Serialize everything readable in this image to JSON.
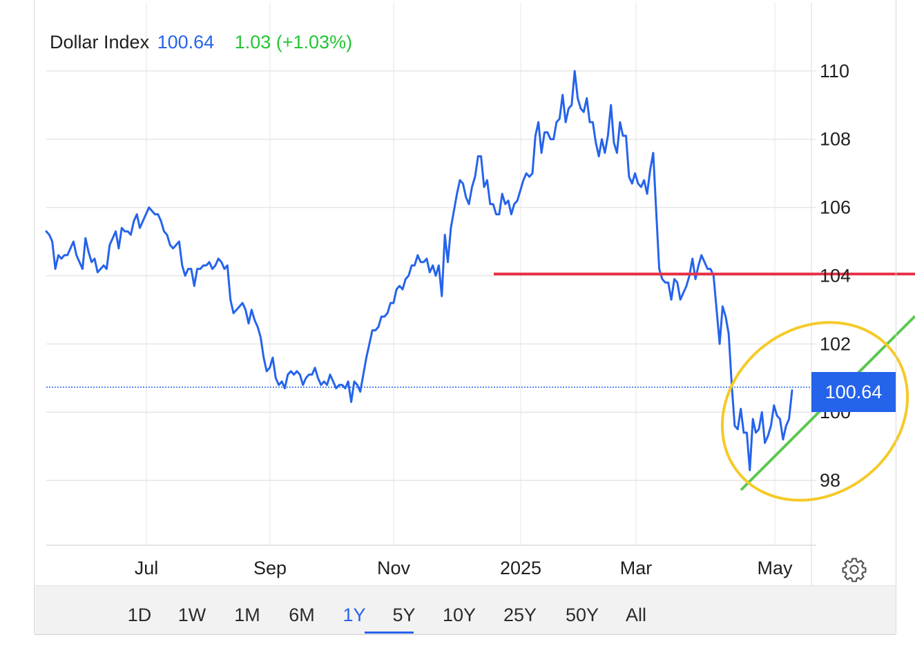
{
  "legend": {
    "name": "Dollar Index",
    "last": "100.64",
    "change": "1.03 (+1.03%)"
  },
  "price_tag": "100.64",
  "range_tabs": [
    "1D",
    "1W",
    "1M",
    "6M",
    "1Y",
    "5Y",
    "10Y",
    "25Y",
    "50Y",
    "All"
  ],
  "active_range": "1Y",
  "colors": {
    "line": "#2563eb",
    "accent": "#2563eb",
    "change_up": "#22c534",
    "support_line": "#e8344a",
    "trend_line": "#5cc84f",
    "highlight_ellipse": "#f5ca28"
  },
  "icons": {
    "settings": "gear-icon"
  },
  "chart_data": {
    "type": "line",
    "title": "",
    "xlabel": "",
    "ylabel": "",
    "x_tick_labels": [
      "Jul",
      "Sep",
      "Nov",
      "2025",
      "Mar",
      "May"
    ],
    "y_ticks": [
      98,
      100,
      102,
      104,
      106,
      108,
      110
    ],
    "ylim": [
      96.1,
      112.0
    ],
    "grid": true,
    "last_value": 100.64,
    "series": [
      {
        "name": "Dollar Index",
        "values": [
          105.3,
          105.2,
          105.0,
          104.2,
          104.6,
          104.5,
          104.6,
          104.6,
          104.8,
          105.0,
          104.6,
          104.4,
          104.2,
          105.1,
          104.7,
          104.4,
          104.5,
          104.1,
          104.2,
          104.3,
          104.2,
          104.9,
          105.1,
          105.3,
          104.8,
          105.4,
          105.3,
          105.3,
          105.2,
          105.6,
          105.8,
          105.4,
          105.6,
          105.8,
          106.0,
          105.9,
          105.8,
          105.8,
          105.6,
          105.3,
          105.2,
          104.9,
          104.8,
          104.9,
          105.0,
          104.3,
          104.0,
          104.2,
          104.2,
          103.7,
          104.2,
          104.2,
          104.3,
          104.3,
          104.4,
          104.2,
          104.3,
          104.5,
          104.4,
          104.2,
          104.3,
          103.3,
          102.9,
          103.0,
          103.1,
          103.2,
          103.0,
          102.6,
          103.0,
          102.7,
          102.5,
          102.2,
          101.6,
          101.2,
          101.3,
          101.6,
          101.0,
          100.8,
          100.9,
          100.7,
          101.1,
          101.2,
          101.1,
          101.2,
          101.1,
          100.8,
          101.0,
          101.1,
          101.1,
          101.3,
          101.0,
          100.8,
          100.9,
          100.8,
          101.1,
          100.9,
          100.7,
          100.8,
          100.8,
          100.7,
          100.9,
          100.3,
          100.9,
          100.8,
          100.6,
          101.1,
          101.6,
          102.0,
          102.4,
          102.4,
          102.5,
          102.8,
          102.8,
          102.9,
          103.2,
          103.2,
          103.6,
          103.7,
          103.6,
          103.9,
          104.0,
          104.3,
          104.3,
          104.6,
          104.4,
          104.4,
          104.5,
          104.1,
          104.3,
          104.0,
          104.3,
          103.4,
          105.2,
          104.4,
          105.4,
          105.9,
          106.4,
          106.8,
          106.7,
          106.3,
          106.1,
          106.6,
          106.9,
          107.5,
          107.5,
          106.6,
          106.8,
          106.1,
          106.1,
          105.8,
          105.8,
          106.4,
          106.1,
          106.2,
          105.8,
          106.1,
          106.2,
          106.5,
          106.8,
          107.0,
          106.9,
          107.0,
          108.1,
          108.5,
          107.6,
          108.2,
          108.2,
          108.0,
          108.0,
          108.5,
          108.6,
          109.3,
          108.5,
          108.9,
          109.0,
          110.0,
          109.2,
          108.9,
          108.8,
          109.2,
          108.5,
          108.5,
          107.9,
          107.5,
          108.0,
          107.6,
          108.1,
          109.0,
          107.9,
          107.6,
          108.5,
          108.1,
          108.1,
          106.9,
          106.7,
          107.0,
          106.7,
          106.6,
          106.8,
          106.4,
          107.1,
          107.6,
          105.9,
          104.2,
          103.9,
          103.8,
          103.8,
          103.3,
          103.9,
          103.8,
          103.3,
          103.5,
          103.7,
          104.0,
          104.5,
          103.9,
          104.3,
          104.6,
          104.4,
          104.2,
          104.2,
          104.0,
          103.0,
          102.0,
          103.1,
          102.8,
          102.3,
          100.8,
          99.6,
          99.5,
          100.1,
          99.4,
          99.4,
          98.3,
          99.8,
          99.4,
          99.5,
          100.0,
          99.1,
          99.3,
          99.6,
          100.2,
          99.9,
          99.8,
          99.2,
          99.6,
          99.8,
          100.64
        ]
      }
    ]
  }
}
